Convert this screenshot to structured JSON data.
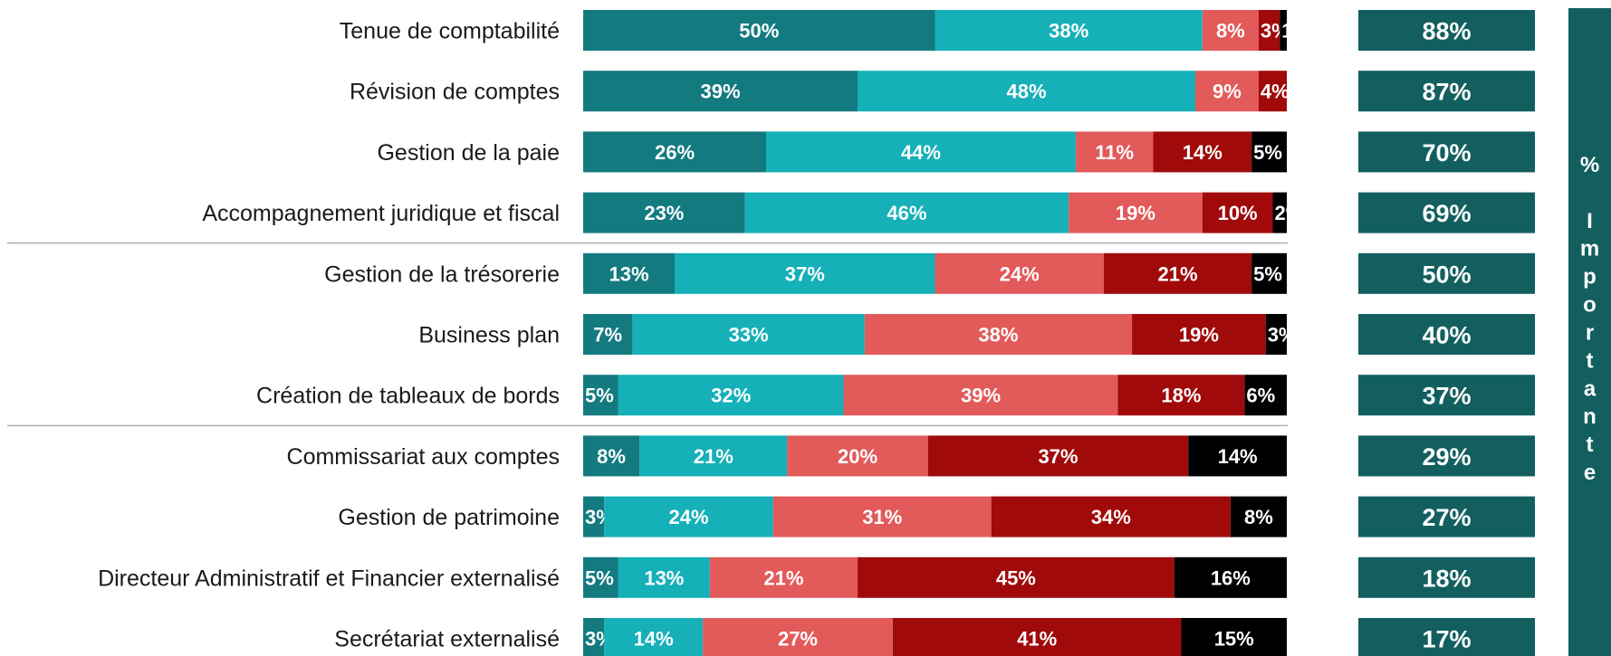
{
  "chart_data": {
    "type": "bar",
    "orientation": "horizontal",
    "stacked": true,
    "categories": [
      "Tenue de comptabilité",
      "Révision de comptes",
      "Gestion de la paie",
      "Accompagnement juridique et fiscal",
      "Gestion de la trésorerie",
      "Business plan",
      "Création de tableaux de bords",
      "Commissariat aux comptes",
      "Gestion de patrimoine",
      "Directeur Administratif et Financier externalisé",
      "Secrétariat externalisé"
    ],
    "series": [
      {
        "color": "#137a80",
        "values": [
          50,
          39,
          26,
          23,
          13,
          7,
          5,
          8,
          3,
          5,
          3
        ]
      },
      {
        "color": "#15b0b8",
        "values": [
          38,
          48,
          44,
          46,
          37,
          33,
          32,
          21,
          24,
          13,
          14
        ]
      },
      {
        "color": "#e25a5a",
        "values": [
          8,
          9,
          11,
          19,
          24,
          38,
          39,
          20,
          31,
          21,
          27
        ]
      },
      {
        "color": "#a00a0a",
        "values": [
          3,
          4,
          14,
          10,
          21,
          19,
          18,
          37,
          34,
          45,
          41
        ]
      },
      {
        "color": "#000000",
        "values": [
          1,
          0,
          5,
          2,
          5,
          3,
          6,
          14,
          8,
          16,
          15
        ]
      }
    ],
    "value_suffix": "%",
    "importance_title": "% Importante",
    "importance_values": [
      88,
      87,
      70,
      69,
      50,
      40,
      37,
      29,
      27,
      18,
      17
    ],
    "importance_color": "#135f5f",
    "group_separators_after": [
      3,
      6
    ],
    "xlim": [
      0,
      100
    ],
    "grid": false
  }
}
